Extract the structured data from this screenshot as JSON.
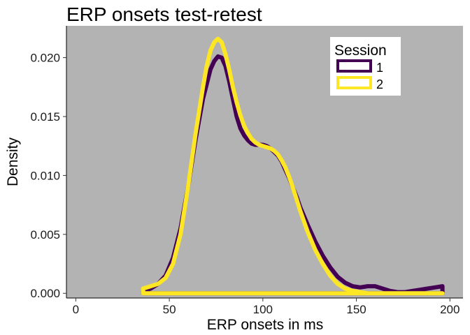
{
  "chart_data": {
    "type": "area",
    "title": "ERP onsets test-retest",
    "xlabel": "ERP onsets in ms",
    "ylabel": "Density",
    "xlim": [
      -5,
      207
    ],
    "ylim": [
      -0.0004,
      0.0227
    ],
    "x_ticks": [
      0,
      50,
      100,
      150,
      200
    ],
    "y_ticks": [
      0.0,
      0.005,
      0.01,
      0.015,
      0.02
    ],
    "x_tick_labels": [
      "0",
      "50",
      "100",
      "150",
      "200"
    ],
    "y_tick_labels": [
      "0.000",
      "0.005",
      "0.010",
      "0.015",
      "0.020"
    ],
    "panel_background": "#b3b3b3",
    "grid": false,
    "legend": {
      "title": "Session",
      "position": "top-right",
      "entries": [
        "1",
        "2"
      ]
    },
    "series": [
      {
        "name": "1",
        "color": "#440154",
        "x": [
          36,
          40,
          44,
          48,
          52,
          56,
          60,
          64,
          68,
          72,
          74,
          76,
          78,
          80,
          82,
          84,
          86,
          88,
          90,
          92,
          94,
          96,
          98,
          100,
          102,
          104,
          106,
          108,
          110,
          112,
          114,
          116,
          118,
          120,
          124,
          128,
          132,
          136,
          140,
          144,
          148,
          152,
          156,
          160,
          164,
          168,
          172,
          176,
          180,
          184,
          188,
          192,
          196
        ],
        "y": [
          0.0002,
          0.0004,
          0.0008,
          0.0015,
          0.003,
          0.0055,
          0.009,
          0.013,
          0.0165,
          0.019,
          0.0197,
          0.0201,
          0.02,
          0.0193,
          0.018,
          0.0165,
          0.015,
          0.014,
          0.0134,
          0.013,
          0.0127,
          0.0126,
          0.0126,
          0.0126,
          0.0125,
          0.0123,
          0.012,
          0.0117,
          0.0112,
          0.0105,
          0.0098,
          0.009,
          0.0082,
          0.0073,
          0.0058,
          0.0044,
          0.0032,
          0.0022,
          0.0014,
          0.0009,
          0.0006,
          0.0005,
          0.0006,
          0.0006,
          0.0004,
          0.0002,
          0.0001,
          0.0001,
          0.0002,
          0.0003,
          0.0004,
          0.0005,
          0.0006
        ]
      },
      {
        "name": "2",
        "color": "#fde725",
        "x": [
          36,
          40,
          44,
          48,
          52,
          56,
          60,
          64,
          68,
          70,
          72,
          74,
          76,
          78,
          80,
          82,
          84,
          86,
          88,
          90,
          92,
          94,
          96,
          98,
          100,
          102,
          104,
          106,
          108,
          110,
          112,
          114,
          116,
          118,
          120,
          124,
          128,
          132,
          136,
          140,
          144,
          148,
          152,
          156,
          160,
          164,
          168,
          172,
          176,
          180,
          184,
          188,
          192,
          196
        ],
        "y": [
          0.0004,
          0.0006,
          0.0008,
          0.0013,
          0.0025,
          0.005,
          0.009,
          0.0135,
          0.0175,
          0.0193,
          0.0206,
          0.0213,
          0.0216,
          0.0213,
          0.0203,
          0.019,
          0.0175,
          0.0162,
          0.0151,
          0.0142,
          0.0136,
          0.0131,
          0.0128,
          0.0126,
          0.0125,
          0.0124,
          0.0123,
          0.0121,
          0.0118,
          0.0113,
          0.0107,
          0.0099,
          0.009,
          0.008,
          0.007,
          0.0052,
          0.0037,
          0.0025,
          0.0015,
          0.0008,
          0.0004,
          0.0002,
          0.0001,
          0.0,
          0.0,
          0.0,
          0.0,
          0.0,
          0.0,
          0.0,
          0.0,
          0.0,
          0.0,
          0.0
        ]
      }
    ]
  }
}
